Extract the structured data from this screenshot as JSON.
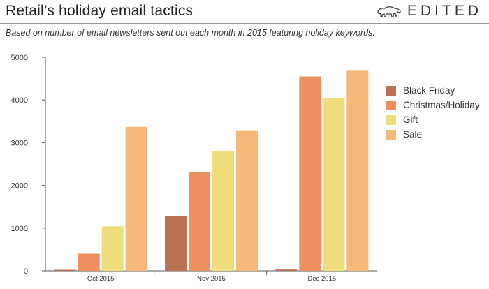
{
  "header": {
    "title": "Retail’s holiday email tactics",
    "subtitle": "Based on number of email newsletters sent out each month in 2015 featuring holiday keywords.",
    "brand": "EDITED",
    "brand_icon": "polar-bear-icon"
  },
  "chart_data": {
    "type": "bar",
    "categories": [
      "Oct 2015",
      "Nov 2015",
      "Dec 2015"
    ],
    "series": [
      {
        "name": "Black Friday",
        "color": "#b97152",
        "values": [
          10,
          1280,
          30
        ]
      },
      {
        "name": "Christmas/Holiday",
        "color": "#ee8f5d",
        "values": [
          400,
          2310,
          4550
        ]
      },
      {
        "name": "Gift",
        "color": "#eedd7a",
        "values": [
          1040,
          2800,
          4040
        ]
      },
      {
        "name": "Sale",
        "color": "#f7b777",
        "values": [
          3370,
          3290,
          4700
        ]
      }
    ],
    "yticks": [
      0,
      1000,
      2000,
      3000,
      4000,
      5000
    ],
    "ylim": [
      0,
      5000
    ],
    "xlabel": "",
    "ylabel": "",
    "grid": false,
    "legend_position": "right"
  }
}
